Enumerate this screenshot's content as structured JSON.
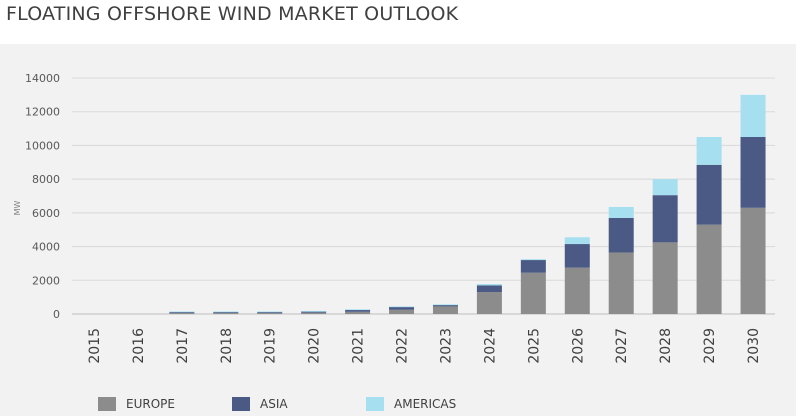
{
  "title": "FLOATING OFFSHORE WIND MARKET OUTLOOK",
  "chart_data": {
    "type": "bar",
    "stacked": true,
    "title": "FLOATING OFFSHORE WIND MARKET OUTLOOK",
    "xlabel": "",
    "ylabel": "MW",
    "ylim": [
      0,
      14000
    ],
    "yticks": [
      "0",
      "2000",
      "4000",
      "6000",
      "8000",
      "10000",
      "12000",
      "14000"
    ],
    "grid": true,
    "legend_position": "bottom",
    "categories": [
      "2015",
      "2016",
      "2017",
      "2018",
      "2019",
      "2020",
      "2021",
      "2022",
      "2023",
      "2024",
      "2025",
      "2026",
      "2027",
      "2028",
      "2029",
      "2030"
    ],
    "series": [
      {
        "name": "EUROPE",
        "color": "#8c8c8c",
        "values": [
          0,
          0,
          60,
          60,
          60,
          80,
          130,
          250,
          450,
          1300,
          2450,
          2750,
          3650,
          4250,
          5300,
          6300
        ]
      },
      {
        "name": "ASIA",
        "color": "#4a5a85",
        "values": [
          0,
          0,
          70,
          70,
          70,
          80,
          130,
          180,
          100,
          400,
          750,
          1400,
          2050,
          2800,
          3550,
          4200
        ]
      },
      {
        "name": "AMERICAS",
        "color": "#a6dfef",
        "values": [
          0,
          0,
          20,
          20,
          20,
          20,
          20,
          20,
          20,
          80,
          50,
          400,
          650,
          950,
          1650,
          2500
        ]
      }
    ]
  }
}
